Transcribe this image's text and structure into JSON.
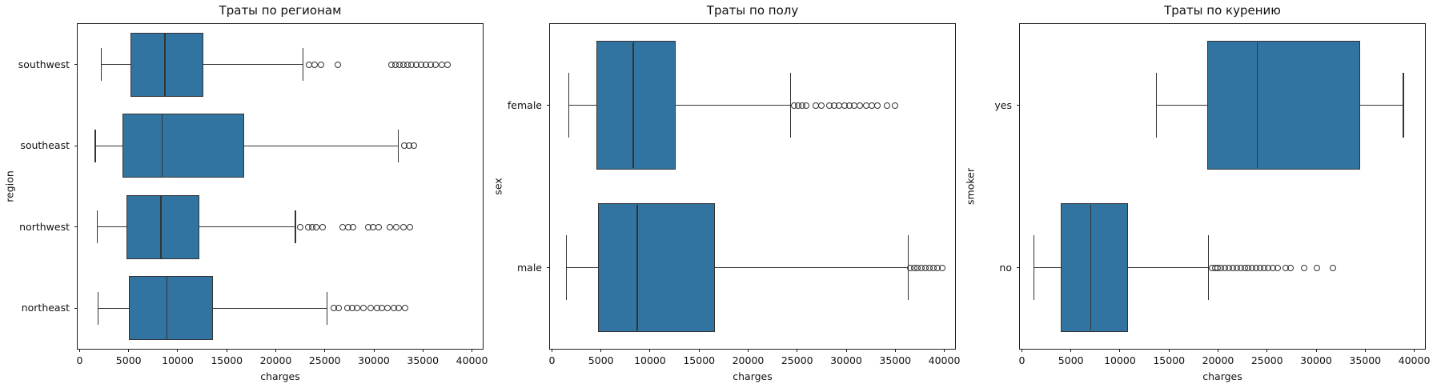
{
  "figure": {
    "background": "#ffffff"
  },
  "style": {
    "box_fill": "#3274a1",
    "line": "#333333",
    "spine": "#1f1f1f",
    "text": "#111111"
  },
  "chart_data": [
    {
      "type": "boxplot",
      "orientation": "horizontal",
      "title": "Траты по регионам",
      "ylabel": "region",
      "xlabel": "charges",
      "xlim": [
        -200,
        41100
      ],
      "xticks": [
        0,
        5000,
        10000,
        15000,
        20000,
        25000,
        30000,
        35000,
        40000
      ],
      "grid": false,
      "categories": [
        "southwest",
        "southeast",
        "northwest",
        "northeast"
      ],
      "stats": [
        {
          "label": "southwest",
          "whislo": 2200,
          "q1": 5200,
          "med": 8700,
          "q3": 12600,
          "whishi": 22800,
          "outliers": [
            23400,
            24000,
            24600,
            26300,
            31800,
            32200,
            32600,
            33000,
            33400,
            33800,
            34300,
            34800,
            35300,
            35800,
            36300,
            36900,
            37500
          ]
        },
        {
          "label": "southeast",
          "whislo": 1600,
          "q1": 4400,
          "med": 8400,
          "q3": 16800,
          "whishi": 32500,
          "outliers": [
            33100,
            33600,
            34100
          ]
        },
        {
          "label": "northwest",
          "whislo": 1800,
          "q1": 4800,
          "med": 8300,
          "q3": 12200,
          "whishi": 22000,
          "outliers": [
            22500,
            23300,
            23700,
            24100,
            24800,
            26800,
            27400,
            27900,
            29400,
            29900,
            30500,
            31600,
            32300,
            33000,
            33700
          ]
        },
        {
          "label": "northeast",
          "whislo": 1900,
          "q1": 5000,
          "med": 8900,
          "q3": 13600,
          "whishi": 25200,
          "outliers": [
            25900,
            26400,
            27300,
            27800,
            28300,
            28900,
            29700,
            30300,
            30800,
            31400,
            32000,
            32500,
            33200
          ]
        }
      ]
    },
    {
      "type": "boxplot",
      "orientation": "horizontal",
      "title": "Траты по полу",
      "ylabel": "sex",
      "xlabel": "charges",
      "xlim": [
        -200,
        41100
      ],
      "xticks": [
        0,
        5000,
        10000,
        15000,
        20000,
        25000,
        30000,
        35000,
        40000
      ],
      "grid": false,
      "categories": [
        "female",
        "male"
      ],
      "stats": [
        {
          "label": "female",
          "whislo": 1700,
          "q1": 4500,
          "med": 8300,
          "q3": 12600,
          "whishi": 24300,
          "outliers": [
            24700,
            25100,
            25500,
            25900,
            26900,
            27500,
            28300,
            28800,
            29300,
            29800,
            30300,
            30800,
            31400,
            32000,
            32600,
            33200,
            34200,
            35000
          ]
        },
        {
          "label": "male",
          "whislo": 1500,
          "q1": 4700,
          "med": 8700,
          "q3": 16600,
          "whishi": 36300,
          "outliers": [
            36500,
            36900,
            37300,
            37700,
            38100,
            38500,
            38900,
            39300,
            39800
          ]
        }
      ]
    },
    {
      "type": "boxplot",
      "orientation": "horizontal",
      "title": "Траты по курению",
      "ylabel": "smoker",
      "xlabel": "charges",
      "xlim": [
        -200,
        41100
      ],
      "xticks": [
        0,
        5000,
        10000,
        15000,
        20000,
        25000,
        30000,
        35000,
        40000
      ],
      "grid": false,
      "categories": [
        "yes",
        "no"
      ],
      "stats": [
        {
          "label": "yes",
          "whislo": 13700,
          "q1": 18900,
          "med": 24000,
          "q3": 34500,
          "whishi": 38900,
          "outliers": []
        },
        {
          "label": "no",
          "whislo": 1250,
          "q1": 3950,
          "med": 7000,
          "q3": 10800,
          "whishi": 19000,
          "outliers": [
            19400,
            19700,
            20000,
            20300,
            20700,
            21100,
            21500,
            21900,
            22300,
            22700,
            23100,
            23500,
            23900,
            24300,
            24700,
            25100,
            25600,
            26100,
            26900,
            27400,
            28800,
            30100,
            31700
          ]
        }
      ]
    }
  ]
}
